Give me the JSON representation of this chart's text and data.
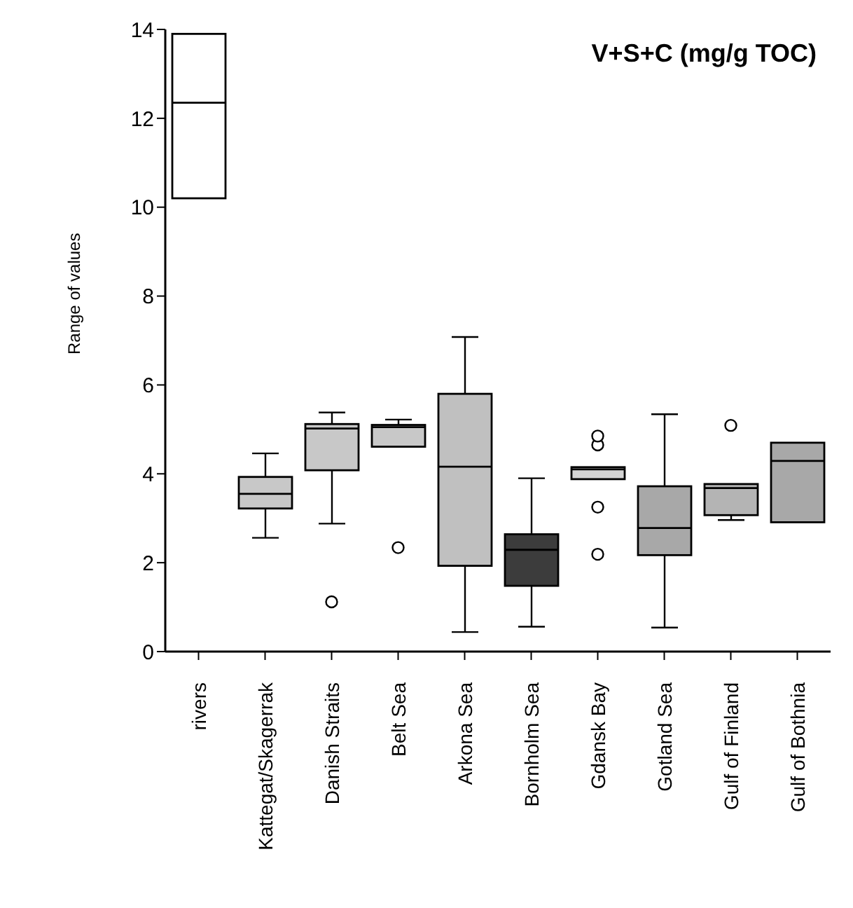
{
  "chart_data": {
    "type": "box",
    "title": "V+S+C (mg/g TOC)",
    "ylabel": "Range of values",
    "categories": [
      "rivers",
      "Kattegat/Skagerrak",
      "Danish Straits",
      "Belt Sea",
      "Arkona Sea",
      "Bornholm Sea",
      "Gdansk Bay",
      "Gotland Sea",
      "Gulf of Finland",
      "Gulf of Bothnia"
    ],
    "colors": [
      "#ffffff",
      "#c8c8c8",
      "#c8c8c8",
      "#c8c8c8",
      "#c0c0c0",
      "#3c3c3c",
      "#d4d4d4",
      "#a8a8a8",
      "#b4b4b4",
      "#a8a8a8"
    ],
    "boxes": [
      {
        "low": 10.2,
        "q1": 10.2,
        "median": 12.35,
        "q3": 13.9,
        "high": 13.9
      },
      {
        "low": 2.56,
        "q1": 3.22,
        "median": 3.55,
        "q3": 3.93,
        "high": 4.46
      },
      {
        "low": 2.88,
        "q1": 4.08,
        "median": 5.02,
        "q3": 5.12,
        "high": 5.38,
        "outliers": [
          1.12
        ]
      },
      {
        "low": 4.61,
        "q1": 4.61,
        "median": 5.05,
        "q3": 5.1,
        "high": 5.22,
        "outliers": [
          2.34
        ]
      },
      {
        "low": 0.44,
        "q1": 1.93,
        "median": 4.16,
        "q3": 5.8,
        "high": 7.08
      },
      {
        "low": 0.56,
        "q1": 1.48,
        "median": 2.29,
        "q3": 2.64,
        "high": 3.9
      },
      {
        "low": 3.88,
        "q1": 3.88,
        "median": 4.1,
        "q3": 4.15,
        "high": 4.15,
        "outliers": [
          2.19,
          3.25,
          4.65,
          4.85
        ]
      },
      {
        "low": 0.54,
        "q1": 2.17,
        "median": 2.78,
        "q3": 3.72,
        "high": 5.34
      },
      {
        "low": 2.96,
        "q1": 3.07,
        "median": 3.68,
        "q3": 3.77,
        "high": 3.77,
        "outliers": [
          5.09
        ]
      },
      {
        "low": 2.91,
        "q1": 2.91,
        "median": 4.29,
        "q3": 4.7,
        "high": 4.7
      }
    ],
    "ylim": [
      0,
      14
    ],
    "yticks": [
      0,
      2,
      4,
      6,
      8,
      10,
      12,
      14
    ]
  }
}
